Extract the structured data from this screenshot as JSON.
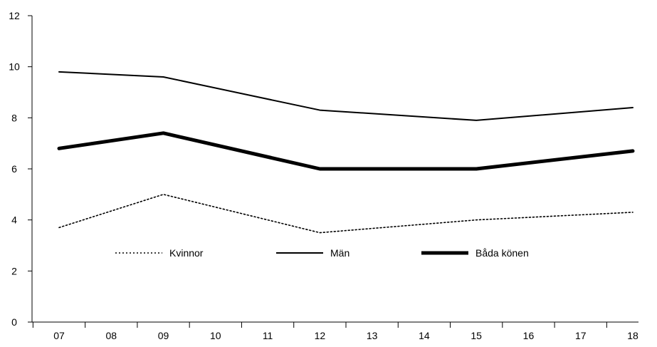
{
  "chart_data": {
    "type": "line",
    "x": [
      "07",
      "09",
      "12",
      "15",
      "18"
    ],
    "x_ticks": [
      "07",
      "08",
      "09",
      "10",
      "11",
      "12",
      "13",
      "14",
      "15",
      "16",
      "17",
      "18"
    ],
    "y_ticks": [
      "0",
      "2",
      "4",
      "6",
      "8",
      "10",
      "12"
    ],
    "ylim": [
      0,
      12
    ],
    "grid": false,
    "legend_position": "lower-middle",
    "series": [
      {
        "name": "Kvinnor",
        "style": "dotted",
        "color": "#000000",
        "values": [
          3.7,
          5.0,
          3.5,
          4.0,
          4.3
        ]
      },
      {
        "name": "Män",
        "style": "solid",
        "color": "#000000",
        "values": [
          9.8,
          9.6,
          8.3,
          7.9,
          8.4
        ]
      },
      {
        "name": "Båda könen",
        "style": "thick",
        "color": "#000000",
        "values": [
          6.8,
          7.4,
          6.0,
          6.0,
          6.7
        ]
      }
    ]
  }
}
